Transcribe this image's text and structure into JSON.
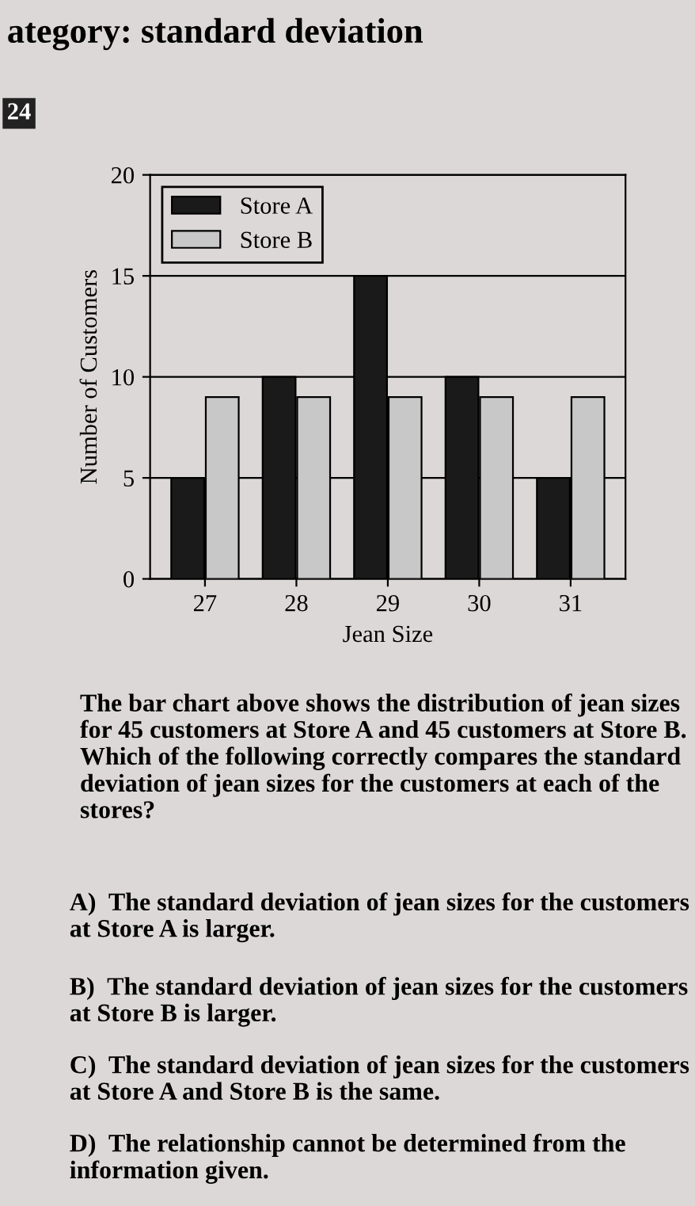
{
  "chart_data": {
    "type": "bar",
    "categories": [
      "27",
      "28",
      "29",
      "30",
      "31"
    ],
    "series": [
      {
        "name": "Store A",
        "color": "#1a1a1a",
        "values": [
          5,
          10,
          15,
          10,
          5
        ]
      },
      {
        "name": "Store B",
        "color": "#c8c8c8",
        "values": [
          9,
          9,
          9,
          9,
          9
        ]
      }
    ],
    "xlabel": "Jean Size",
    "ylabel": "Number of Customers",
    "ylim": [
      0,
      20
    ],
    "yticks": [
      0,
      5,
      10,
      15,
      20
    ],
    "grid": "y",
    "legend": "top left",
    "annotations": [
      "ategory: standard deviation",
      "24",
      "The bar chart above shows the distribution of jean sizes for 45 customers at Store A and 45 customers at Store B. Which of the following correctly compares the standard deviation of jean sizes for the customers at each of the stores?",
      "A)  The standard deviation of jean sizes for the customers at Store A is larger.",
      "B)  The standard deviation of jean sizes for the customers at Store B is larger.",
      "C)  The standard deviation of jean sizes for the customers at Store A and Store B is the same.",
      "D)  The relationship cannot be determined from the information given."
    ]
  }
}
